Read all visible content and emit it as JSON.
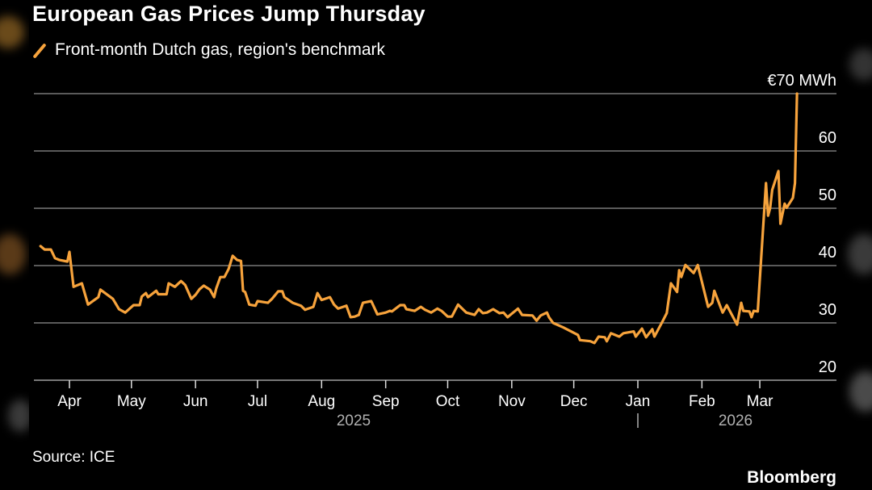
{
  "title": "European Gas Prices Jump Thursday",
  "legend": {
    "label": "Front-month Dutch gas, region's benchmark",
    "icon": "diagonal-line-swatch"
  },
  "source": "Source: ICE",
  "brand": "Bloomberg",
  "colors": {
    "series": "#f7a33c",
    "background": "#000000",
    "grid": "#5a5a5a",
    "text": "#ffffff",
    "year_text": "#b0b0b0"
  },
  "chart_data": {
    "type": "line",
    "title": "European Gas Prices Jump Thursday",
    "unit_label": "€70 MWh",
    "ylim": [
      20,
      70
    ],
    "yticks": [
      20,
      30,
      40,
      50,
      60,
      70
    ],
    "ytick_labels": [
      "20",
      "30",
      "40",
      "50",
      "60",
      "€70 MWh"
    ],
    "y_axis_position": "right",
    "grid": true,
    "legend_position": "top-left",
    "xlim": [
      "2025-03-15",
      "2026-03-23"
    ],
    "month_ticks": [
      {
        "date": "2025-04-01",
        "label": "Apr"
      },
      {
        "date": "2025-05-01",
        "label": "May"
      },
      {
        "date": "2025-06-01",
        "label": "Jun"
      },
      {
        "date": "2025-07-01",
        "label": "Jul"
      },
      {
        "date": "2025-08-01",
        "label": "Aug"
      },
      {
        "date": "2025-09-01",
        "label": "Sep"
      },
      {
        "date": "2025-10-01",
        "label": "Oct"
      },
      {
        "date": "2025-11-01",
        "label": "Nov"
      },
      {
        "date": "2025-12-01",
        "label": "Dec"
      },
      {
        "date": "2026-01-01",
        "label": "Jan"
      },
      {
        "date": "2026-02-01",
        "label": "Feb"
      },
      {
        "date": "2026-03-01",
        "label": "Mar"
      }
    ],
    "year_labels": [
      {
        "label": "2025",
        "from": "2025-04-01",
        "to": "2026-01-01"
      },
      {
        "label": "2026",
        "from": "2026-01-01",
        "to": "2026-04-15"
      }
    ],
    "year_separator": "|",
    "series": [
      {
        "name": "Front-month Dutch gas, region's benchmark",
        "points": [
          [
            "2025-03-18",
            43.4
          ],
          [
            "2025-03-20",
            42.8
          ],
          [
            "2025-03-23",
            42.8
          ],
          [
            "2025-03-25",
            41.3
          ],
          [
            "2025-03-27",
            41.0
          ],
          [
            "2025-03-31",
            40.7
          ],
          [
            "2025-04-01",
            42.4
          ],
          [
            "2025-04-03",
            36.3
          ],
          [
            "2025-04-07",
            36.9
          ],
          [
            "2025-04-10",
            33.2
          ],
          [
            "2025-04-15",
            34.5
          ],
          [
            "2025-04-16",
            35.8
          ],
          [
            "2025-04-22",
            34.2
          ],
          [
            "2025-04-25",
            32.4
          ],
          [
            "2025-04-28",
            31.8
          ],
          [
            "2025-05-02",
            33.1
          ],
          [
            "2025-05-05",
            33.1
          ],
          [
            "2025-05-06",
            34.6
          ],
          [
            "2025-05-08",
            35.2
          ],
          [
            "2025-05-09",
            34.5
          ],
          [
            "2025-05-13",
            35.6
          ],
          [
            "2025-05-14",
            35.0
          ],
          [
            "2025-05-18",
            35.0
          ],
          [
            "2025-05-19",
            36.9
          ],
          [
            "2025-05-22",
            36.3
          ],
          [
            "2025-05-25",
            37.3
          ],
          [
            "2025-05-27",
            36.6
          ],
          [
            "2025-05-30",
            34.2
          ],
          [
            "2025-06-01",
            34.9
          ],
          [
            "2025-06-03",
            35.9
          ],
          [
            "2025-06-05",
            36.5
          ],
          [
            "2025-06-08",
            35.8
          ],
          [
            "2025-06-10",
            34.5
          ],
          [
            "2025-06-11",
            36.0
          ],
          [
            "2025-06-13",
            38.0
          ],
          [
            "2025-06-15",
            38.0
          ],
          [
            "2025-06-17",
            39.4
          ],
          [
            "2025-06-19",
            41.7
          ],
          [
            "2025-06-21",
            41.0
          ],
          [
            "2025-06-23",
            40.8
          ],
          [
            "2025-06-24",
            35.6
          ],
          [
            "2025-06-25",
            35.4
          ],
          [
            "2025-06-27",
            33.2
          ],
          [
            "2025-06-30",
            33.0
          ],
          [
            "2025-07-01",
            33.8
          ],
          [
            "2025-07-06",
            33.5
          ],
          [
            "2025-07-08",
            34.2
          ],
          [
            "2025-07-11",
            35.5
          ],
          [
            "2025-07-13",
            35.5
          ],
          [
            "2025-07-14",
            34.5
          ],
          [
            "2025-07-18",
            33.5
          ],
          [
            "2025-07-22",
            33.0
          ],
          [
            "2025-07-24",
            32.3
          ],
          [
            "2025-07-28",
            32.8
          ],
          [
            "2025-07-30",
            35.2
          ],
          [
            "2025-08-01",
            34.0
          ],
          [
            "2025-08-05",
            34.5
          ],
          [
            "2025-08-07",
            33.2
          ],
          [
            "2025-08-09",
            32.5
          ],
          [
            "2025-08-13",
            33.0
          ],
          [
            "2025-08-15",
            31.0
          ],
          [
            "2025-08-17",
            31.1
          ],
          [
            "2025-08-19",
            31.4
          ],
          [
            "2025-08-21",
            33.5
          ],
          [
            "2025-08-25",
            33.8
          ],
          [
            "2025-08-28",
            31.5
          ],
          [
            "2025-09-01",
            31.8
          ],
          [
            "2025-09-03",
            32.1
          ],
          [
            "2025-09-04",
            32.0
          ],
          [
            "2025-09-08",
            33.1
          ],
          [
            "2025-09-10",
            33.1
          ],
          [
            "2025-09-11",
            32.4
          ],
          [
            "2025-09-15",
            32.1
          ],
          [
            "2025-09-18",
            32.8
          ],
          [
            "2025-09-20",
            32.3
          ],
          [
            "2025-09-23",
            31.8
          ],
          [
            "2025-09-26",
            32.5
          ],
          [
            "2025-09-28",
            32.1
          ],
          [
            "2025-10-01",
            31.1
          ],
          [
            "2025-10-03",
            31.1
          ],
          [
            "2025-10-06",
            33.2
          ],
          [
            "2025-10-10",
            31.8
          ],
          [
            "2025-10-14",
            31.4
          ],
          [
            "2025-10-16",
            32.4
          ],
          [
            "2025-10-18",
            31.7
          ],
          [
            "2025-10-20",
            31.8
          ],
          [
            "2025-10-23",
            32.4
          ],
          [
            "2025-10-26",
            31.7
          ],
          [
            "2025-10-28",
            31.8
          ],
          [
            "2025-10-30",
            31.0
          ],
          [
            "2025-11-04",
            32.5
          ],
          [
            "2025-11-06",
            31.4
          ],
          [
            "2025-11-11",
            31.3
          ],
          [
            "2025-11-13",
            30.4
          ],
          [
            "2025-11-15",
            31.3
          ],
          [
            "2025-11-18",
            31.8
          ],
          [
            "2025-11-19",
            31.0
          ],
          [
            "2025-11-21",
            30.0
          ],
          [
            "2025-11-26",
            29.2
          ],
          [
            "2025-12-03",
            27.9
          ],
          [
            "2025-12-04",
            27.0
          ],
          [
            "2025-12-09",
            26.8
          ],
          [
            "2025-12-11",
            26.5
          ],
          [
            "2025-12-13",
            27.6
          ],
          [
            "2025-12-16",
            27.5
          ],
          [
            "2025-12-17",
            26.8
          ],
          [
            "2025-12-19",
            28.2
          ],
          [
            "2025-12-23",
            27.6
          ],
          [
            "2025-12-25",
            28.2
          ],
          [
            "2025-12-30",
            28.5
          ],
          [
            "2025-12-31",
            27.6
          ],
          [
            "2026-01-03",
            29.0
          ],
          [
            "2026-01-05",
            27.5
          ],
          [
            "2026-01-08",
            28.9
          ],
          [
            "2026-01-09",
            27.6
          ],
          [
            "2026-01-13",
            30.3
          ],
          [
            "2026-01-15",
            31.7
          ],
          [
            "2026-01-17",
            36.9
          ],
          [
            "2026-01-20",
            35.4
          ],
          [
            "2026-01-21",
            39.2
          ],
          [
            "2026-01-22",
            38.0
          ],
          [
            "2026-01-24",
            40.1
          ],
          [
            "2026-01-28",
            38.7
          ],
          [
            "2026-01-30",
            40.1
          ],
          [
            "2026-02-04",
            32.8
          ],
          [
            "2026-02-06",
            33.5
          ],
          [
            "2026-02-07",
            35.6
          ],
          [
            "2026-02-11",
            31.8
          ],
          [
            "2026-02-13",
            33.1
          ],
          [
            "2026-02-18",
            29.7
          ],
          [
            "2026-02-20",
            33.5
          ],
          [
            "2026-02-21",
            32.1
          ],
          [
            "2026-02-24",
            32.0
          ],
          [
            "2026-02-25",
            31.0
          ],
          [
            "2026-02-26",
            32.1
          ],
          [
            "2026-02-28",
            32.0
          ],
          [
            "2026-03-04",
            54.4
          ],
          [
            "2026-03-05",
            48.7
          ],
          [
            "2026-03-06",
            50.0
          ],
          [
            "2026-03-07",
            53.2
          ],
          [
            "2026-03-10",
            56.5
          ],
          [
            "2026-03-11",
            47.3
          ],
          [
            "2026-03-13",
            50.8
          ],
          [
            "2026-03-14",
            50.1
          ],
          [
            "2026-03-17",
            51.8
          ],
          [
            "2026-03-18",
            54.4
          ],
          [
            "2026-03-19",
            70.0
          ]
        ]
      }
    ]
  }
}
